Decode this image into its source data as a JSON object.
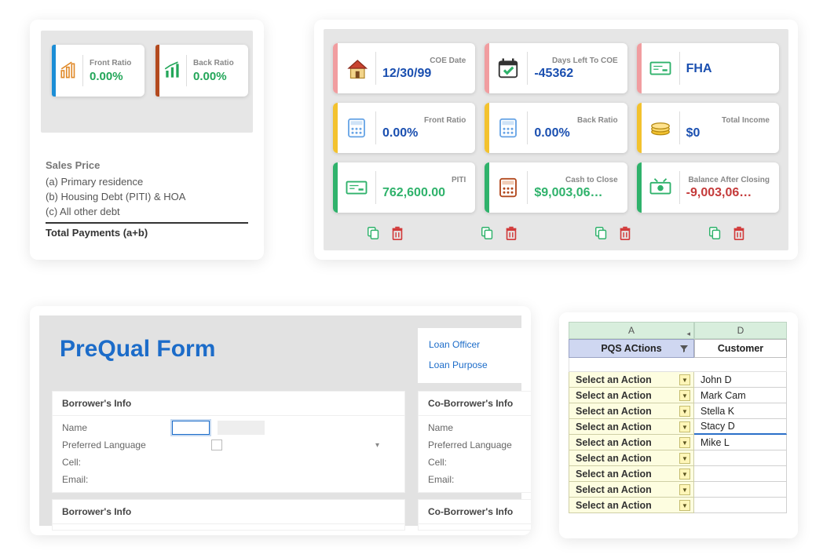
{
  "card1": {
    "ratios": [
      {
        "label": "Front Ratio",
        "value": "0.00%",
        "bar_color": "#1c8ed6",
        "icon_color": "#e08a2a",
        "value_color": "#23a659"
      },
      {
        "label": "Back Ratio",
        "value": "0.00%",
        "bar_color": "#b34a1f",
        "icon_color": "#23a659",
        "value_color": "#23a659"
      }
    ],
    "sales": {
      "header": "Sales Price",
      "lines": [
        "(a) Primary residence",
        "(b) Housing Debt (PITI) & HOA",
        "(c) All other debt"
      ],
      "total": "Total Payments (a+b)"
    }
  },
  "card2": {
    "metrics": [
      {
        "label": "COE Date",
        "value": "12/30/99",
        "bar_color": "#f19da0",
        "icon": "house",
        "value_color": "#1a4fb0"
      },
      {
        "label": "Days Left To COE",
        "value": "-45362",
        "bar_color": "#f19da0",
        "icon": "calcheck",
        "value_color": "#1a4fb0"
      },
      {
        "label": "",
        "value": "FHA",
        "bar_color": "#f19da0",
        "icon": "check",
        "value_color": "#1a4fb0"
      },
      {
        "label": "Front Ratio",
        "value": "0.00%",
        "bar_color": "#f3c22e",
        "icon": "calc",
        "value_color": "#1a4fb0"
      },
      {
        "label": "Back Ratio",
        "value": "0.00%",
        "bar_color": "#f3c22e",
        "icon": "calc",
        "value_color": "#1a4fb0"
      },
      {
        "label": "Total Income",
        "value": "$0",
        "bar_color": "#f3c22e",
        "icon": "coins",
        "value_color": "#1a4fb0"
      },
      {
        "label": "PITI",
        "value": "762,600.00",
        "bar_color": "#2fb26b",
        "icon": "check",
        "value_color": "#2fb26b"
      },
      {
        "label": "Cash to Close",
        "value": "$9,003,06…",
        "bar_color": "#2fb26b",
        "icon": "calc2",
        "value_color": "#2fb26b"
      },
      {
        "label": "Balance After Closing",
        "value": "-9,003,06…",
        "bar_color": "#2fb26b",
        "icon": "cash",
        "value_color": "#c43a3a"
      }
    ],
    "action_pairs": 4
  },
  "card3": {
    "title": "PreQual Form",
    "links": [
      "Loan Officer",
      "Loan Purpose"
    ],
    "borrower_header": "Borrower's Info",
    "coborrower_header": "Co-Borrower's Info",
    "fields": [
      "Name",
      "Preferred Language",
      "Cell:",
      "Email:"
    ]
  },
  "card4": {
    "col_headers": [
      "A",
      "D"
    ],
    "headers": [
      "PQS ACtions",
      "Customer"
    ],
    "colA_width": 160,
    "colB_width": 118,
    "action_label": "Select an Action",
    "customers": [
      "John D",
      "Mark Cam",
      "Stella K",
      "Stacy D",
      "Mike L",
      "",
      "",
      "",
      ""
    ],
    "selected_row_index": 3
  }
}
